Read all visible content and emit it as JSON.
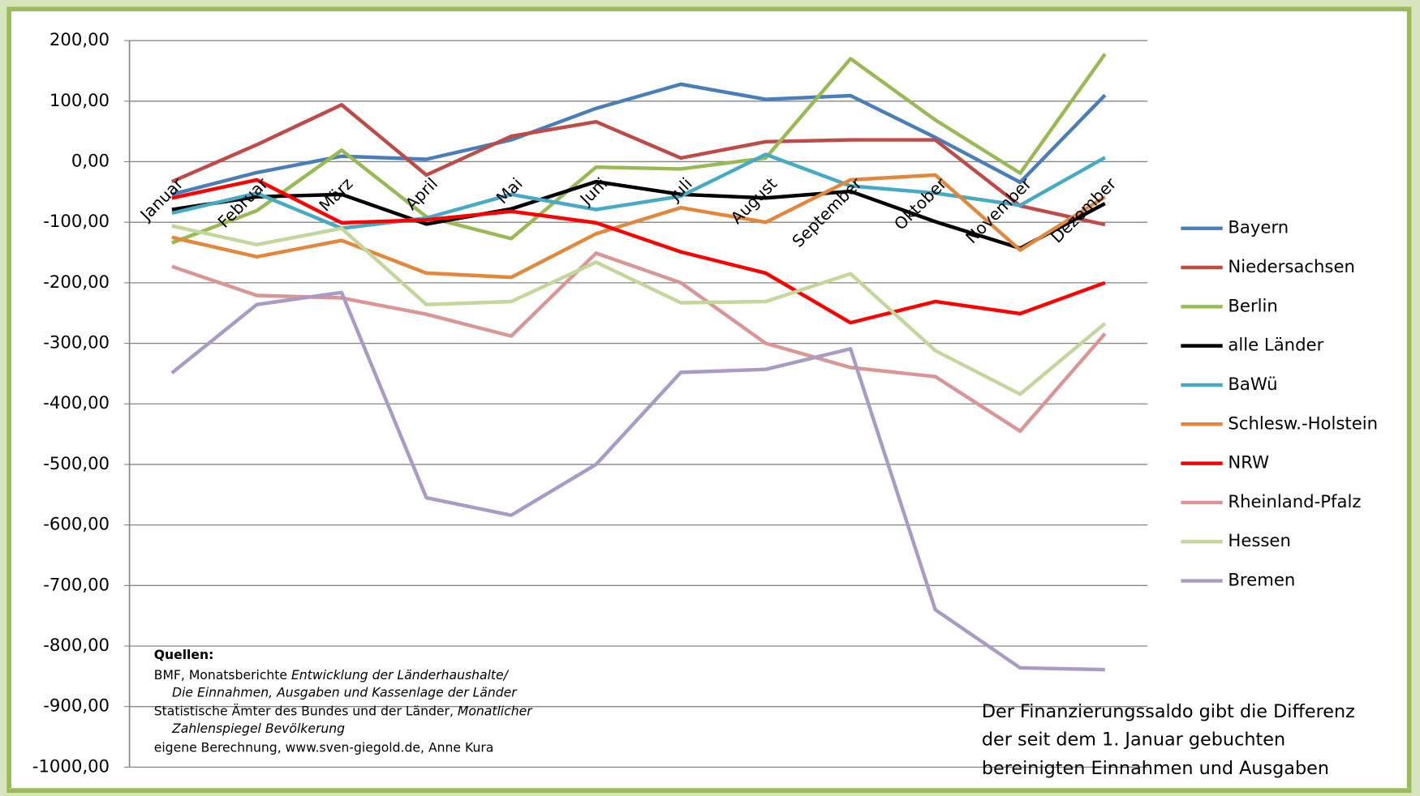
{
  "chart_data": {
    "type": "line",
    "categories": [
      "Januar",
      "Februar",
      "März",
      "April",
      "Mai",
      "Juni",
      "Juli",
      "August",
      "September",
      "Oktober",
      "November",
      "Dezember"
    ],
    "ylim": [
      -1000,
      200
    ],
    "yticks": [
      {
        "value": 200,
        "label": "200,00"
      },
      {
        "value": 100,
        "label": "100,00"
      },
      {
        "value": 0,
        "label": "0,00"
      },
      {
        "value": -100,
        "label": "-100,00"
      },
      {
        "value": -200,
        "label": "-200,00"
      },
      {
        "value": -300,
        "label": "-300,00"
      },
      {
        "value": -400,
        "label": "-400,00"
      },
      {
        "value": -500,
        "label": "-500,00"
      },
      {
        "value": -600,
        "label": "-600,00"
      },
      {
        "value": -700,
        "label": "-700,00"
      },
      {
        "value": -800,
        "label": "-800,00"
      },
      {
        "value": -900,
        "label": "-900,00"
      },
      {
        "value": -1000,
        "label": "-1000,00"
      }
    ],
    "grid": true,
    "legend": "right",
    "series": [
      {
        "name": "Bayern",
        "color": "#4a7ebb",
        "values": [
          -54,
          -18,
          9,
          4,
          36,
          88,
          128,
          103,
          109,
          40,
          -34,
          110
        ]
      },
      {
        "name": "Niedersachsen",
        "color": "#be4b48",
        "values": [
          -33,
          28,
          94,
          -22,
          42,
          66,
          6,
          33,
          36,
          36,
          -73,
          -104
        ]
      },
      {
        "name": "Berlin",
        "color": "#98b954",
        "values": [
          -134,
          -81,
          19,
          -91,
          -127,
          -9,
          -12,
          6,
          170,
          69,
          -19,
          178
        ]
      },
      {
        "name": "alle Länder",
        "color": "#000000",
        "values": [
          -79,
          -58,
          -54,
          -103,
          -78,
          -33,
          -54,
          -60,
          -49,
          -99,
          -143,
          -69
        ]
      },
      {
        "name": "BaWü",
        "color": "#46aac5",
        "values": [
          -85,
          -52,
          -110,
          -93,
          -54,
          -79,
          -57,
          12,
          -40,
          -52,
          -72,
          7
        ]
      },
      {
        "name": "Schlesw.-Holstein",
        "color": "#e3873b",
        "values": [
          -125,
          -157,
          -130,
          -184,
          -191,
          -119,
          -76,
          -100,
          -30,
          -22,
          -146,
          -58
        ]
      },
      {
        "name": "NRW",
        "color": "#ff0000",
        "values": [
          -60,
          -30,
          -101,
          -96,
          -82,
          -101,
          -149,
          -184,
          -266,
          -231,
          -251,
          -200
        ]
      },
      {
        "name": "Rheinland-Pfalz",
        "color": "#d99694",
        "values": [
          -173,
          -221,
          -225,
          -252,
          -288,
          -151,
          -200,
          -300,
          -340,
          -355,
          -445,
          -284
        ]
      },
      {
        "name": "Hessen",
        "color": "#c3d69b",
        "values": [
          -106,
          -137,
          -110,
          -236,
          -231,
          -166,
          -233,
          -231,
          -185,
          -312,
          -384,
          -267
        ]
      },
      {
        "name": "Bremen",
        "color": "#a99bc6",
        "values": [
          -349,
          -236,
          -216,
          -555,
          -584,
          -500,
          -348,
          -343,
          -309,
          -740,
          -836,
          -839
        ]
      }
    ],
    "sources": {
      "heading": "Quellen:",
      "line1": "BMF,  Monatsberichte ",
      "line1_italic": "Entwicklung der Länderhaushalte/",
      "line2_italic": "Die Einnahmen, Ausgaben und Kassenlage der Länder",
      "line3": "Statistische Ämter des Bundes und der Länder, ",
      "line3_italic": "Monatlicher",
      "line4_italic": "Zahlenspiegel Bevölkerung",
      "line5": "eigene Berechnung, www.sven-giegold.de, Anne Kura"
    },
    "annotations": [
      "Der Finanzierungssaldo gibt die Differenz",
      "der seit dem 1. Januar gebuchten",
      "bereinigten Einnahmen und Ausgaben"
    ]
  }
}
